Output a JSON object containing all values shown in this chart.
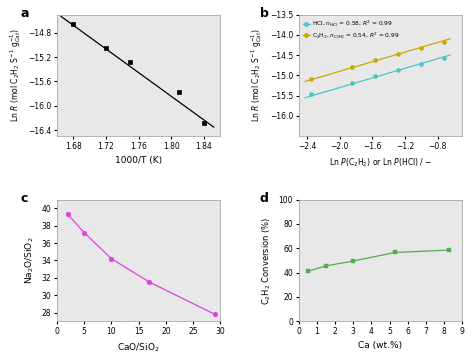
{
  "panel_a": {
    "x": [
      1.68,
      1.72,
      1.75,
      1.81,
      1.84
    ],
    "y": [
      -14.65,
      -15.05,
      -15.28,
      -15.78,
      -16.28
    ],
    "fit_x": [
      1.665,
      1.852
    ],
    "fit_y": [
      -14.53,
      -16.35
    ],
    "xlabel": "1000/T (K)",
    "xlim": [
      1.66,
      1.86
    ],
    "ylim": [
      -16.5,
      -14.5
    ],
    "xticks": [
      1.68,
      1.72,
      1.76,
      1.8,
      1.84
    ],
    "yticks": [
      -16.4,
      -16.0,
      -15.6,
      -15.2,
      -14.8
    ]
  },
  "panel_b": {
    "hcl_x": [
      -2.35,
      -1.85,
      -1.57,
      -1.28,
      -1.0,
      -0.72
    ],
    "hcl_y": [
      -15.45,
      -15.2,
      -15.02,
      -14.87,
      -14.72,
      -14.57
    ],
    "c2h2_x": [
      -2.35,
      -1.85,
      -1.57,
      -1.28,
      -1.0,
      -0.72
    ],
    "c2h2_y": [
      -15.08,
      -14.8,
      -14.63,
      -14.47,
      -14.32,
      -14.18
    ],
    "hcl_fit_x": [
      -2.42,
      -0.65
    ],
    "hcl_fit_y": [
      -15.55,
      -14.5
    ],
    "c2h2_fit_x": [
      -2.42,
      -0.65
    ],
    "c2h2_fit_y": [
      -15.15,
      -14.1
    ],
    "xlim": [
      -2.5,
      -0.5
    ],
    "ylim": [
      -16.5,
      -13.5
    ],
    "xticks": [
      -2.4,
      -2.0,
      -1.6,
      -1.2,
      -0.8
    ],
    "yticks": [
      -16.0,
      -15.5,
      -15.0,
      -14.5,
      -14.0,
      -13.5
    ],
    "hcl_color": "#4cc4c4",
    "c2h2_color": "#c8aa00"
  },
  "panel_c": {
    "x": [
      2,
      5,
      10,
      17,
      29
    ],
    "y": [
      39.3,
      37.2,
      34.2,
      31.5,
      27.8
    ],
    "xlim": [
      0,
      30
    ],
    "ylim": [
      27,
      41
    ],
    "xticks": [
      0,
      5,
      10,
      15,
      20,
      25,
      30
    ],
    "yticks": [
      28,
      30,
      32,
      34,
      36,
      38,
      40
    ],
    "color": "#dd44dd"
  },
  "panel_d": {
    "x": [
      0.5,
      1.5,
      3.0,
      5.3,
      8.3
    ],
    "y": [
      41,
      45.5,
      49.5,
      56.5,
      58.5
    ],
    "xlim": [
      0,
      9
    ],
    "ylim": [
      0,
      100
    ],
    "xticks": [
      0,
      1,
      2,
      3,
      4,
      5,
      6,
      7,
      8,
      9
    ],
    "yticks": [
      0,
      20,
      40,
      60,
      80,
      100
    ],
    "color": "#55aa55"
  },
  "bg_color": "#e8e8e8"
}
